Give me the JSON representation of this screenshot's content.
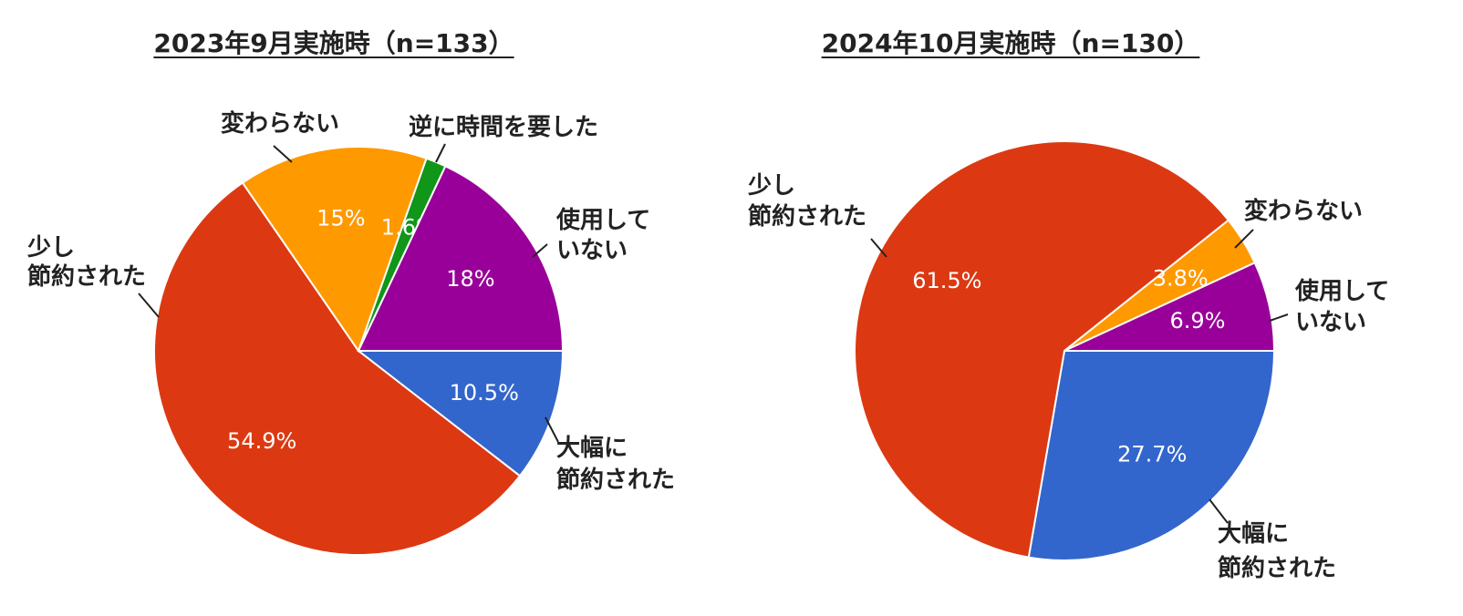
{
  "chart_data": [
    {
      "type": "pie",
      "title": "2023年9月実施時（n=133）",
      "slices": [
        {
          "label": "大幅に節約された",
          "value": 10.5,
          "value_label": "10.5%",
          "color": "#3366cc"
        },
        {
          "label": "少し節約された",
          "value": 54.9,
          "value_label": "54.9%",
          "color": "#dc3912"
        },
        {
          "label": "変わらない",
          "value": 15,
          "value_label": "15%",
          "color": "#ff9900"
        },
        {
          "label": "逆に時間を要した",
          "value": 1.6,
          "value_label": "1.6%",
          "color": "#109618"
        },
        {
          "label": "使用していない",
          "value": 18,
          "value_label": "18%",
          "color": "#990099"
        }
      ]
    },
    {
      "type": "pie",
      "title": "2024年10月実施時（n=130）",
      "slices": [
        {
          "label": "大幅に節約された",
          "value": 27.7,
          "value_label": "27.7%",
          "color": "#3366cc"
        },
        {
          "label": "少し節約された",
          "value": 61.5,
          "value_label": "61.5%",
          "color": "#dc3912"
        },
        {
          "label": "変わらない",
          "value": 3.8,
          "value_label": "3.8%",
          "color": "#ff9900"
        },
        {
          "label": "使用していない",
          "value": 6.9,
          "value_label": "6.9%",
          "color": "#990099"
        }
      ]
    }
  ]
}
